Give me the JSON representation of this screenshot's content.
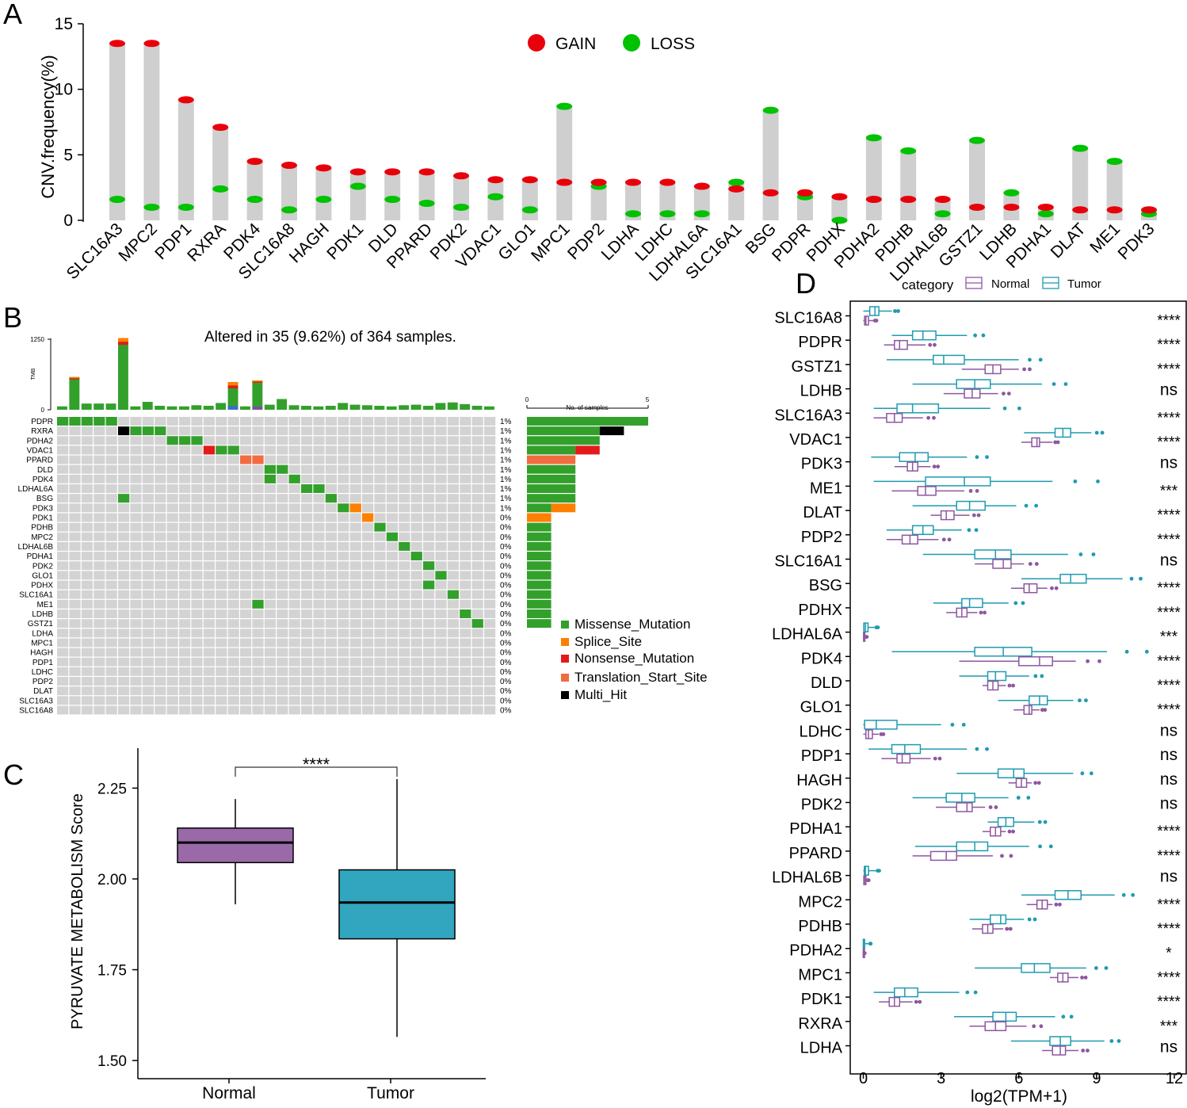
{
  "panel_labels": [
    "A",
    "B",
    "C",
    "D"
  ],
  "colors": {
    "gain": "#e8000b",
    "loss": "#00c200",
    "lollipop": "#cfcfcf",
    "grid_cell": "#d3d3d3",
    "missense": "#33a02c",
    "splice": "#ff7f00",
    "nonsense": "#e31a1c",
    "translation": "#f16d40",
    "multi": "#000000",
    "normal": "#9a6aa8",
    "tumor": "#32a6bf",
    "tumor_line": "#1f9bb0",
    "normal_line": "#8e57a0"
  },
  "chart_data": [
    {
      "id": "A",
      "type": "lollipop",
      "ylabel": "CNV.frequency(%)",
      "ylim": [
        0,
        15
      ],
      "yticks": [
        "0",
        "5",
        "10",
        "15"
      ],
      "legend": [
        "GAIN",
        "LOSS"
      ],
      "genes": [
        "SLC16A3",
        "MPC2",
        "PDP1",
        "RXRA",
        "PDK4",
        "SLC16A8",
        "HAGH",
        "PDK1",
        "DLD",
        "PPARD",
        "PDK2",
        "VDAC1",
        "GLO1",
        "MPC1",
        "PDP2",
        "LDHA",
        "LDHC",
        "LDHAL6A",
        "SLC16A1",
        "BSG",
        "PDPR",
        "PDHX",
        "PDHA2",
        "PDHB",
        "LDHAL6B",
        "GSTZ1",
        "LDHB",
        "PDHA1",
        "DLAT",
        "ME1",
        "PDK3"
      ],
      "gain": [
        13.5,
        13.5,
        9.2,
        7.1,
        4.5,
        4.2,
        4.0,
        3.7,
        3.7,
        3.7,
        3.4,
        3.1,
        3.1,
        2.9,
        2.9,
        2.9,
        2.9,
        2.6,
        2.4,
        2.1,
        2.1,
        1.8,
        1.6,
        1.6,
        1.6,
        1.0,
        1.0,
        1.0,
        0.8,
        0.8,
        0.8
      ],
      "loss": [
        1.6,
        1.0,
        1.0,
        2.4,
        1.6,
        0.8,
        1.6,
        2.6,
        1.6,
        1.3,
        1.0,
        1.8,
        0.8,
        8.7,
        2.6,
        0.5,
        0.5,
        0.5,
        2.9,
        8.4,
        1.8,
        0.0,
        6.3,
        5.3,
        0.5,
        6.1,
        2.1,
        0.5,
        5.5,
        4.5,
        0.5
      ]
    },
    {
      "id": "B",
      "type": "oncoplot",
      "title": "Altered in 35 (9.62%) of 364 samples.",
      "tmb_label": "TMB",
      "tmb_ticks": [
        "1250",
        "0"
      ],
      "tmb_max": 1250,
      "tmb": [
        60,
        580,
        110,
        110,
        110,
        1270,
        60,
        140,
        70,
        60,
        60,
        80,
        70,
        120,
        490,
        60,
        520,
        90,
        190,
        80,
        70,
        60,
        70,
        120,
        90,
        80,
        70,
        60,
        80,
        90,
        70,
        120,
        130,
        100,
        70,
        60
      ],
      "tmb_parts": [
        [
          0,
          0
        ],
        [
          560,
          20
        ],
        [
          0,
          0
        ],
        [
          0,
          0
        ],
        [
          0,
          0
        ],
        [
          1150,
          120
        ],
        [
          0,
          0
        ],
        [
          0,
          0
        ],
        [
          0,
          0
        ],
        [
          0,
          0
        ],
        [
          0,
          0
        ],
        [
          0,
          0
        ],
        [
          0,
          0
        ],
        [
          0,
          0
        ],
        [
          380,
          110
        ],
        [
          0,
          0
        ],
        [
          480,
          40
        ],
        [
          0,
          0
        ],
        [
          0,
          0
        ],
        [
          0,
          0
        ],
        [
          0,
          0
        ],
        [
          0,
          0
        ],
        [
          0,
          0
        ],
        [
          0,
          0
        ],
        [
          0,
          0
        ],
        [
          0,
          0
        ],
        [
          0,
          0
        ],
        [
          0,
          0
        ],
        [
          0,
          0
        ],
        [
          0,
          0
        ],
        [
          0,
          0
        ],
        [
          0,
          0
        ],
        [
          0,
          0
        ],
        [
          0,
          0
        ],
        [
          0,
          0
        ],
        [
          0,
          0
        ]
      ],
      "genes": [
        "PDPR",
        "RXRA",
        "PDHA2",
        "VDAC1",
        "PPARD",
        "DLD",
        "PDK4",
        "LDHAL6A",
        "BSG",
        "PDK3",
        "PDK1",
        "PDHB",
        "MPC2",
        "LDHAL6B",
        "PDHA1",
        "PDK2",
        "GLO1",
        "PDHX",
        "SLC16A1",
        "ME1",
        "LDHB",
        "GSTZ1",
        "LDHA",
        "MPC1",
        "HAGH",
        "PDP1",
        "LDHC",
        "PDP2",
        "DLAT",
        "SLC16A3",
        "SLC16A8"
      ],
      "percent": [
        "1%",
        "1%",
        "1%",
        "1%",
        "1%",
        "1%",
        "1%",
        "1%",
        "1%",
        "1%",
        "0%",
        "0%",
        "0%",
        "0%",
        "0%",
        "0%",
        "0%",
        "0%",
        "0%",
        "0%",
        "0%",
        "0%",
        "0%",
        "0%",
        "0%",
        "0%",
        "0%",
        "0%",
        "0%",
        "0%",
        "0%"
      ],
      "n_samples": 36,
      "cells": [
        [
          0,
          0,
          "m"
        ],
        [
          0,
          1,
          "m"
        ],
        [
          0,
          2,
          "m"
        ],
        [
          0,
          3,
          "m"
        ],
        [
          0,
          4,
          "m"
        ],
        [
          1,
          5,
          "x"
        ],
        [
          1,
          6,
          "m"
        ],
        [
          1,
          7,
          "m"
        ],
        [
          1,
          8,
          "m"
        ],
        [
          2,
          9,
          "m"
        ],
        [
          2,
          10,
          "m"
        ],
        [
          2,
          11,
          "m"
        ],
        [
          3,
          12,
          "n"
        ],
        [
          3,
          13,
          "m"
        ],
        [
          3,
          14,
          "m"
        ],
        [
          4,
          15,
          "t"
        ],
        [
          4,
          16,
          "t"
        ],
        [
          5,
          17,
          "m"
        ],
        [
          5,
          18,
          "m"
        ],
        [
          6,
          17,
          "m"
        ],
        [
          6,
          19,
          "m"
        ],
        [
          7,
          20,
          "m"
        ],
        [
          7,
          21,
          "m"
        ],
        [
          8,
          5,
          "m"
        ],
        [
          8,
          22,
          "m"
        ],
        [
          9,
          23,
          "m"
        ],
        [
          9,
          24,
          "s"
        ],
        [
          10,
          25,
          "s"
        ],
        [
          11,
          26,
          "m"
        ],
        [
          12,
          27,
          "m"
        ],
        [
          13,
          28,
          "m"
        ],
        [
          14,
          29,
          "m"
        ],
        [
          15,
          30,
          "m"
        ],
        [
          16,
          31,
          "m"
        ],
        [
          17,
          30,
          "m"
        ],
        [
          18,
          32,
          "m"
        ],
        [
          19,
          16,
          "m"
        ],
        [
          20,
          33,
          "m"
        ],
        [
          21,
          34,
          "m"
        ]
      ],
      "right_axis_label": "No. of samples",
      "right_ticks": [
        "0",
        "5"
      ],
      "right_max": 5,
      "right_bars": [
        [
          [
            5,
            "m"
          ]
        ],
        [
          [
            3,
            "m"
          ],
          [
            1,
            "x"
          ]
        ],
        [
          [
            3,
            "m"
          ]
        ],
        [
          [
            2,
            "m"
          ],
          [
            1,
            "n"
          ]
        ],
        [
          [
            2,
            "t"
          ]
        ],
        [
          [
            2,
            "m"
          ]
        ],
        [
          [
            2,
            "m"
          ]
        ],
        [
          [
            2,
            "m"
          ]
        ],
        [
          [
            2,
            "m"
          ]
        ],
        [
          [
            1,
            "m"
          ],
          [
            1,
            "s"
          ]
        ],
        [
          [
            1,
            "s"
          ]
        ],
        [
          [
            1,
            "m"
          ]
        ],
        [
          [
            1,
            "m"
          ]
        ],
        [
          [
            1,
            "m"
          ]
        ],
        [
          [
            1,
            "m"
          ]
        ],
        [
          [
            1,
            "m"
          ]
        ],
        [
          [
            1,
            "m"
          ]
        ],
        [
          [
            1,
            "m"
          ]
        ],
        [
          [
            1,
            "m"
          ]
        ],
        [
          [
            1,
            "m"
          ]
        ],
        [
          [
            1,
            "m"
          ]
        ],
        [
          [
            1,
            "m"
          ]
        ]
      ],
      "legend": [
        "Missense_Mutation",
        "Splice_Site",
        "Nonsense_Mutation",
        "Translation_Start_Site",
        "Multi_Hit"
      ]
    },
    {
      "id": "C",
      "type": "boxplot",
      "ylabel": "PYRUVATE METABOLISM Score",
      "ylim": [
        1.45,
        2.36
      ],
      "yticks": [
        1.5,
        1.75,
        2.0,
        2.25
      ],
      "ytick_labels": [
        "1.50",
        "1.75",
        "2.00",
        "2.25"
      ],
      "categories": [
        "Normal",
        "Tumor"
      ],
      "boxes": [
        {
          "name": "Normal",
          "min": 1.93,
          "q1": 2.045,
          "median": 2.1,
          "q3": 2.14,
          "max": 2.22
        },
        {
          "name": "Tumor",
          "min": 1.565,
          "q1": 1.835,
          "median": 1.935,
          "q3": 2.025,
          "max": 2.275
        }
      ],
      "significance": "****"
    },
    {
      "id": "D",
      "type": "horizontal-boxplot",
      "legend_title": "category",
      "legend": [
        "Normal",
        "Tumor"
      ],
      "xlabel": "log2(TPM+1)",
      "xlim": [
        -0.3,
        12
      ],
      "xticks": [
        0,
        3,
        6,
        9,
        12
      ],
      "xtick_labels": [
        "0",
        "3",
        "6",
        "9",
        "12"
      ],
      "genes": [
        "SLC16A8",
        "PDPR",
        "GSTZ1",
        "LDHB",
        "SLC16A3",
        "VDAC1",
        "PDK3",
        "ME1",
        "DLAT",
        "PDP2",
        "SLC16A1",
        "BSG",
        "PDHX",
        "LDHAL6A",
        "PDK4",
        "DLD",
        "GLO1",
        "LDHC",
        "PDP1",
        "HAGH",
        "PDK2",
        "PDHA1",
        "PPARD",
        "LDHAL6B",
        "MPC2",
        "PDHB",
        "PDHA2",
        "MPC1",
        "PDK1",
        "RXRA",
        "LDHA"
      ],
      "signif": [
        "****",
        "****",
        "****",
        "ns",
        "****",
        "****",
        "ns",
        "***",
        "****",
        "****",
        "ns",
        "****",
        "****",
        "***",
        "****",
        "****",
        "****",
        "ns",
        "ns",
        "ns",
        "ns",
        "****",
        "****",
        "ns",
        "****",
        "****",
        "*",
        "****",
        "****",
        "***",
        "ns"
      ],
      "tumor": [
        [
          0.0,
          0.25,
          0.45,
          0.6,
          1.1
        ],
        [
          1.1,
          1.9,
          2.3,
          2.8,
          4.0
        ],
        [
          0.9,
          2.7,
          3.1,
          3.9,
          6.0
        ],
        [
          1.9,
          3.6,
          4.3,
          4.9,
          6.9
        ],
        [
          0.4,
          1.3,
          1.9,
          2.9,
          4.9
        ],
        [
          6.2,
          7.4,
          7.7,
          8.0,
          8.8
        ],
        [
          0.3,
          1.4,
          2.0,
          2.5,
          4.0
        ],
        [
          0.4,
          2.4,
          3.9,
          4.9,
          7.3
        ],
        [
          1.9,
          3.6,
          4.1,
          4.7,
          5.9
        ],
        [
          0.9,
          1.9,
          2.3,
          2.7,
          3.8
        ],
        [
          2.3,
          4.3,
          5.1,
          5.7,
          7.9
        ],
        [
          6.1,
          7.6,
          8.0,
          8.6,
          10.0
        ],
        [
          2.7,
          3.8,
          4.1,
          4.6,
          5.6
        ],
        [
          0.0,
          0.02,
          0.08,
          0.18,
          0.45
        ],
        [
          1.1,
          4.3,
          5.4,
          6.5,
          9.4
        ],
        [
          3.7,
          4.8,
          5.1,
          5.5,
          6.4
        ],
        [
          5.2,
          6.4,
          6.8,
          7.1,
          8.1
        ],
        [
          0.0,
          0.05,
          0.5,
          1.3,
          3.0
        ],
        [
          0.2,
          1.1,
          1.6,
          2.2,
          4.0
        ],
        [
          3.6,
          5.2,
          5.8,
          6.2,
          8.1
        ],
        [
          1.9,
          3.2,
          3.8,
          4.3,
          5.6
        ],
        [
          4.8,
          5.2,
          5.5,
          5.8,
          6.6
        ],
        [
          2.0,
          3.6,
          4.3,
          4.8,
          6.4
        ],
        [
          0.0,
          0.04,
          0.08,
          0.2,
          0.5
        ],
        [
          6.1,
          7.4,
          7.9,
          8.4,
          9.7
        ],
        [
          4.1,
          4.9,
          5.3,
          5.5,
          6.2
        ],
        [
          0.0,
          0.0,
          0.01,
          0.05,
          0.25
        ],
        [
          4.3,
          6.1,
          6.6,
          7.2,
          8.6
        ],
        [
          0.4,
          1.2,
          1.6,
          2.1,
          3.7
        ],
        [
          3.5,
          5.0,
          5.5,
          5.9,
          7.4
        ],
        [
          5.7,
          7.2,
          7.6,
          8.0,
          9.3
        ]
      ],
      "normal": [
        [
          0.0,
          0.05,
          0.1,
          0.2,
          0.4
        ],
        [
          0.8,
          1.2,
          1.4,
          1.7,
          2.4
        ],
        [
          3.8,
          4.7,
          5.0,
          5.3,
          6.0
        ],
        [
          3.1,
          3.9,
          4.2,
          4.5,
          5.2
        ],
        [
          0.4,
          0.9,
          1.2,
          1.5,
          2.3
        ],
        [
          6.1,
          6.5,
          6.7,
          6.8,
          7.3
        ],
        [
          1.2,
          1.7,
          1.9,
          2.1,
          2.6
        ],
        [
          1.1,
          2.1,
          2.4,
          2.8,
          3.9
        ],
        [
          2.6,
          3.0,
          3.2,
          3.5,
          4.1
        ],
        [
          0.9,
          1.5,
          1.8,
          2.1,
          2.9
        ],
        [
          4.3,
          5.0,
          5.4,
          5.7,
          6.2
        ],
        [
          5.7,
          6.2,
          6.4,
          6.7,
          7.1
        ],
        [
          3.2,
          3.6,
          3.8,
          4.0,
          4.4
        ],
        [
          0.0,
          0.01,
          0.03,
          0.06,
          0.1
        ],
        [
          3.7,
          6.0,
          6.8,
          7.3,
          8.2
        ],
        [
          4.6,
          4.8,
          5.0,
          5.2,
          5.5
        ],
        [
          5.8,
          6.2,
          6.4,
          6.5,
          6.8
        ],
        [
          0.0,
          0.1,
          0.2,
          0.35,
          0.6
        ],
        [
          0.7,
          1.3,
          1.5,
          1.8,
          2.6
        ],
        [
          5.6,
          5.9,
          6.1,
          6.3,
          6.5
        ],
        [
          2.8,
          3.6,
          4.0,
          4.2,
          4.7
        ],
        [
          4.6,
          4.9,
          5.1,
          5.3,
          5.5
        ],
        [
          1.9,
          2.6,
          3.2,
          3.6,
          5.0
        ],
        [
          0.0,
          0.02,
          0.05,
          0.1,
          0.15
        ],
        [
          6.3,
          6.7,
          6.9,
          7.1,
          7.3
        ],
        [
          4.2,
          4.6,
          4.8,
          5.0,
          5.4
        ],
        [
          0.0,
          0.0,
          0.0,
          0.02,
          0.04
        ],
        [
          7.2,
          7.5,
          7.7,
          7.9,
          8.3
        ],
        [
          0.6,
          1.0,
          1.2,
          1.4,
          1.9
        ],
        [
          4.1,
          4.7,
          5.1,
          5.5,
          6.3
        ],
        [
          6.9,
          7.3,
          7.6,
          7.8,
          8.3
        ]
      ]
    }
  ]
}
